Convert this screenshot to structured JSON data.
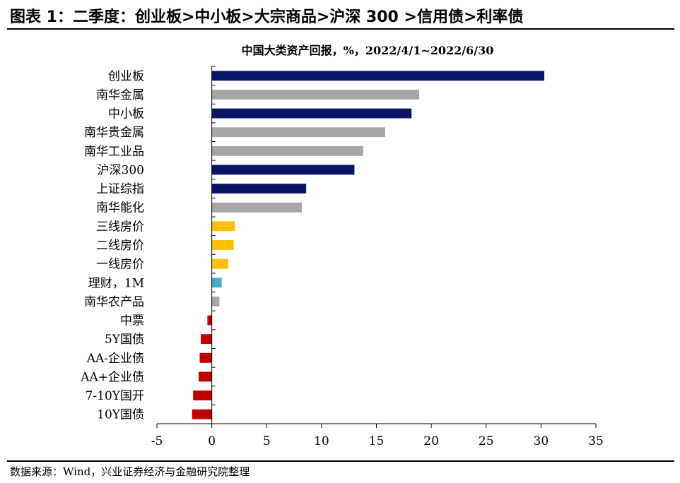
{
  "figure": {
    "title": "图表 1：二季度：创业板>中小板>大宗商品>沪深 300 >信用债>利率债",
    "source": "数据来源：Wind，兴业证券经济与金融研究院整理"
  },
  "colors": {
    "equity": "#0a1464",
    "commodity": "#a6a6a6",
    "housing": "#ffc000",
    "wealth": "#4bacc6",
    "bond": "#c00000"
  },
  "chart_data": {
    "type": "bar",
    "orientation": "horizontal",
    "title": "中国大类资产回报，%，2022/4/1~2022/6/30",
    "xlabel": "",
    "ylabel": "",
    "xlim": [
      -5,
      35
    ],
    "xticks": [
      "-5",
      "0",
      "5",
      "10",
      "15",
      "20",
      "25",
      "30",
      "35"
    ],
    "grid": false,
    "categories": [
      "创业板",
      "南华金属",
      "中小板",
      "南华贵金属",
      "南华工业品",
      "沪深300",
      "上证综指",
      "南华能化",
      "三线房价",
      "二线房价",
      "一线房价",
      "理财，1M",
      "南华农产品",
      "中票",
      "5Y国债",
      "AA-企业债",
      "AA+企业债",
      "7-10Y国开",
      "10Y国债"
    ],
    "values": [
      30.3,
      18.9,
      18.2,
      15.8,
      13.8,
      13.0,
      8.6,
      8.2,
      2.1,
      2.0,
      1.5,
      0.9,
      0.7,
      -0.4,
      -1.0,
      -1.1,
      -1.2,
      -1.7,
      -1.8
    ],
    "groups": [
      "equity",
      "commodity",
      "equity",
      "commodity",
      "commodity",
      "equity",
      "equity",
      "commodity",
      "housing",
      "housing",
      "housing",
      "wealth",
      "commodity",
      "bond",
      "bond",
      "bond",
      "bond",
      "bond",
      "bond"
    ]
  }
}
